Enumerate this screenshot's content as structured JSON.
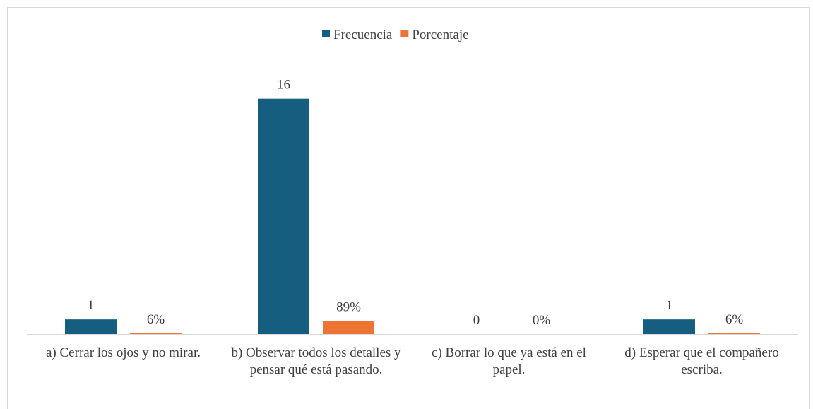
{
  "chart_data": {
    "type": "bar",
    "categories": [
      "a) Cerrar los ojos y no mirar.",
      "b) Observar todos los detalles y pensar qué está pasando.",
      "c) Borrar lo que ya está en el papel.",
      "d) Esperar que el compañero escriba."
    ],
    "series": [
      {
        "name": "Frecuencia",
        "color": "#165e80",
        "values": [
          1,
          16,
          0,
          1
        ]
      },
      {
        "name": "Porcentaje",
        "color": "#ee7433",
        "axis": "y2",
        "values": [
          6,
          89,
          0,
          6
        ],
        "value_labels": [
          "6%",
          "89%",
          "0%",
          "6%"
        ]
      }
    ],
    "ylim": [
      0,
      18
    ],
    "y2lim": [
      0,
      1800
    ],
    "legend": "top"
  }
}
